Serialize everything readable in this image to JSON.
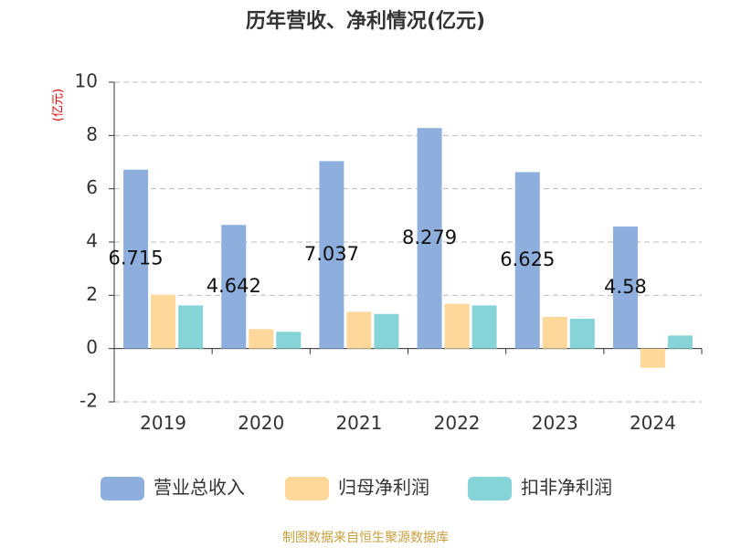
{
  "chart_data": {
    "type": "bar",
    "title": "历年营收、净利情况(亿元)",
    "y_label": "(亿元)",
    "categories": [
      "2019",
      "2020",
      "2021",
      "2022",
      "2023",
      "2024"
    ],
    "series": [
      {
        "name": "营业总收入",
        "color": "#8eaede",
        "values": [
          6.715,
          4.642,
          7.037,
          8.279,
          6.625,
          4.58
        ],
        "show_labels": true
      },
      {
        "name": "归母净利润",
        "color": "#fdd89a",
        "values": [
          2.02,
          0.73,
          1.38,
          1.68,
          1.19,
          -0.72
        ]
      },
      {
        "name": "扣非净利润",
        "color": "#86d4d8",
        "values": [
          1.62,
          0.63,
          1.3,
          1.62,
          1.12,
          0.49
        ]
      }
    ],
    "ylim": [
      -2,
      10
    ],
    "yticks": [
      -2,
      0,
      2,
      4,
      6,
      8,
      10
    ],
    "grid": true,
    "source": "制图数据来自恒生聚源数据库"
  }
}
